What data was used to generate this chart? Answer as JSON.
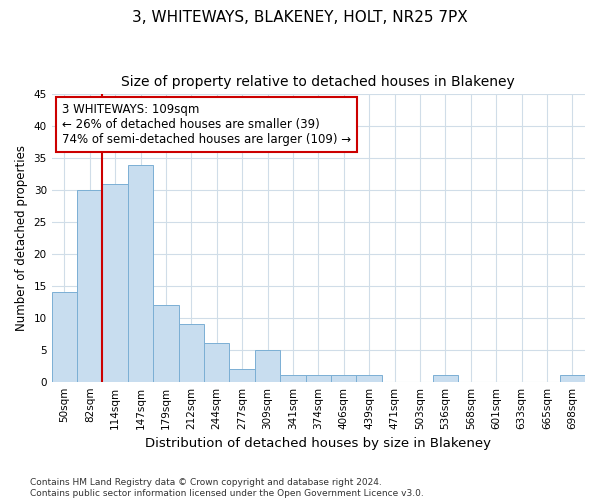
{
  "title1": "3, WHITEWAYS, BLAKENEY, HOLT, NR25 7PX",
  "title2": "Size of property relative to detached houses in Blakeney",
  "xlabel": "Distribution of detached houses by size in Blakeney",
  "ylabel": "Number of detached properties",
  "footnote": "Contains HM Land Registry data © Crown copyright and database right 2024.\nContains public sector information licensed under the Open Government Licence v3.0.",
  "bar_values": [
    14,
    30,
    31,
    34,
    12,
    9,
    6,
    2,
    5,
    1,
    1,
    1,
    1,
    0,
    0,
    1,
    0,
    0,
    0,
    0,
    1
  ],
  "bin_labels": [
    "50sqm",
    "82sqm",
    "114sqm",
    "147sqm",
    "179sqm",
    "212sqm",
    "244sqm",
    "277sqm",
    "309sqm",
    "341sqm",
    "374sqm",
    "406sqm",
    "439sqm",
    "471sqm",
    "503sqm",
    "536sqm",
    "568sqm",
    "601sqm",
    "633sqm",
    "665sqm",
    "698sqm"
  ],
  "bar_color": "#c8ddef",
  "bar_edge_color": "#7bafd4",
  "ylim": [
    0,
    45
  ],
  "yticks": [
    0,
    5,
    10,
    15,
    20,
    25,
    30,
    35,
    40,
    45
  ],
  "vline_x_index": 2,
  "vline_color": "#cc0000",
  "annotation_text": "3 WHITEWAYS: 109sqm\n← 26% of detached houses are smaller (39)\n74% of semi-detached houses are larger (109) →",
  "annotation_box_color": "#ffffff",
  "annotation_box_edge_color": "#cc0000",
  "background_color": "#ffffff",
  "plot_background_color": "#ffffff",
  "grid_color": "#d0dde8",
  "title1_fontsize": 11,
  "title2_fontsize": 10,
  "xlabel_fontsize": 9.5,
  "ylabel_fontsize": 8.5,
  "annotation_fontsize": 8.5,
  "tick_fontsize": 7.5,
  "footnote_fontsize": 6.5
}
